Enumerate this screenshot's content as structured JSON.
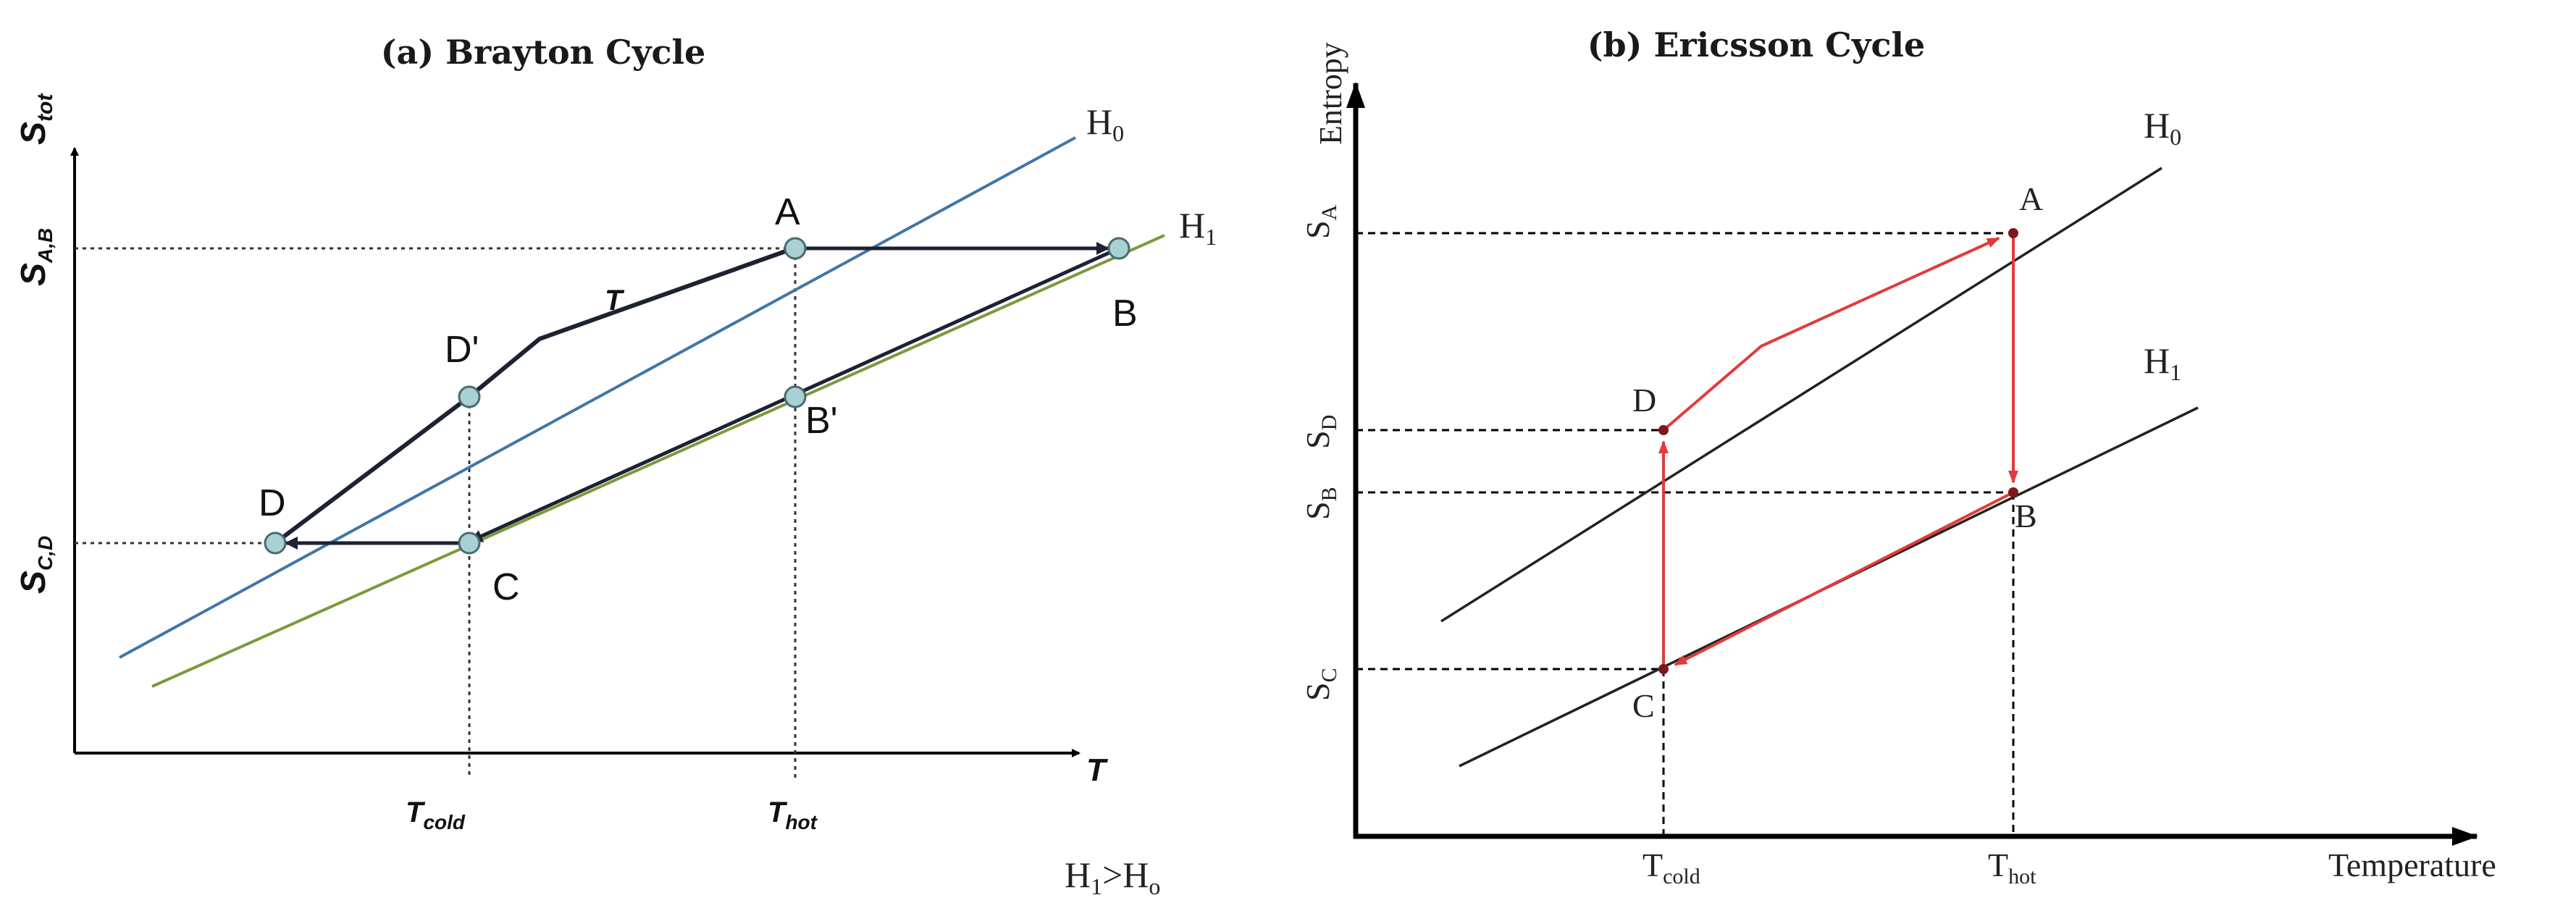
{
  "panel_a": {
    "title": "(a) Brayton  Cycle",
    "y_axis_label": "S",
    "y_axis_label_sub": "tot",
    "x_axis_label": "T",
    "ticks": {
      "s_ab": "S",
      "s_ab_sub": "A,B",
      "s_cd": "S",
      "s_cd_sub": "C,D",
      "t_cold": "T",
      "t_cold_sub": "cold",
      "t_hot": "T",
      "t_hot_sub": "hot"
    },
    "curves": {
      "h0": "H",
      "h0_sub": "0",
      "h1": "H",
      "h1_sub": "1"
    },
    "points": {
      "a": "A",
      "b": "B",
      "b_prime": "B'",
      "c": "C",
      "d": "D",
      "d_prime": "D'"
    },
    "path_label": "T",
    "footnote": "H",
    "footnote_sub1": "1",
    "footnote_mid": ">H",
    "footnote_sub2": "o",
    "colors": {
      "h0": "#3f76a8",
      "h1": "#7a9a3a",
      "cycle": "#1c2233",
      "point_fill": "#a9d0d2"
    }
  },
  "panel_b": {
    "title": "(b) Ericsson Cycle",
    "y_axis_label": "Entropy",
    "x_axis_label": "Temperature",
    "ticks": {
      "s_a": "S",
      "s_a_sub": "A",
      "s_d": "S",
      "s_d_sub": "D",
      "s_b": "S",
      "s_b_sub": "B",
      "s_c": "S",
      "s_c_sub": "C",
      "t_cold": "T",
      "t_cold_sub": "cold",
      "t_hot": "T",
      "t_hot_sub": "hot"
    },
    "curves": {
      "h0": "H",
      "h0_sub": "0",
      "h1": "H",
      "h1_sub": "1"
    },
    "points": {
      "a": "A",
      "b": "B",
      "c": "C",
      "d": "D"
    },
    "colors": {
      "curves": "#222222",
      "cycle": "#e23b3b",
      "point": "#7a1a1a"
    }
  }
}
